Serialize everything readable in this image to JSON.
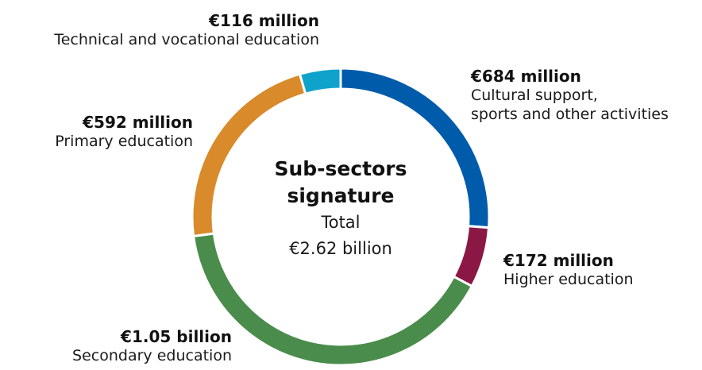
{
  "chart_data": {
    "type": "donut",
    "title": "Sub-sectors\nsignature",
    "subtitle": "Total",
    "total_label": "€2.62 billion",
    "categories": [
      "Cultural support,\nsports and other activities",
      "Higher education",
      "Secondary education",
      "Primary education",
      "Technical and vocational education"
    ],
    "values": [
      684,
      172,
      1050,
      592,
      116
    ],
    "value_labels": [
      "€684 million",
      "€172 million",
      "€1.05 billion",
      "€592 million",
      "€116 million"
    ],
    "colors": [
      "#005bab",
      "#8b1844",
      "#4a8c4b",
      "#d98a2b",
      "#0fa3cb"
    ]
  }
}
